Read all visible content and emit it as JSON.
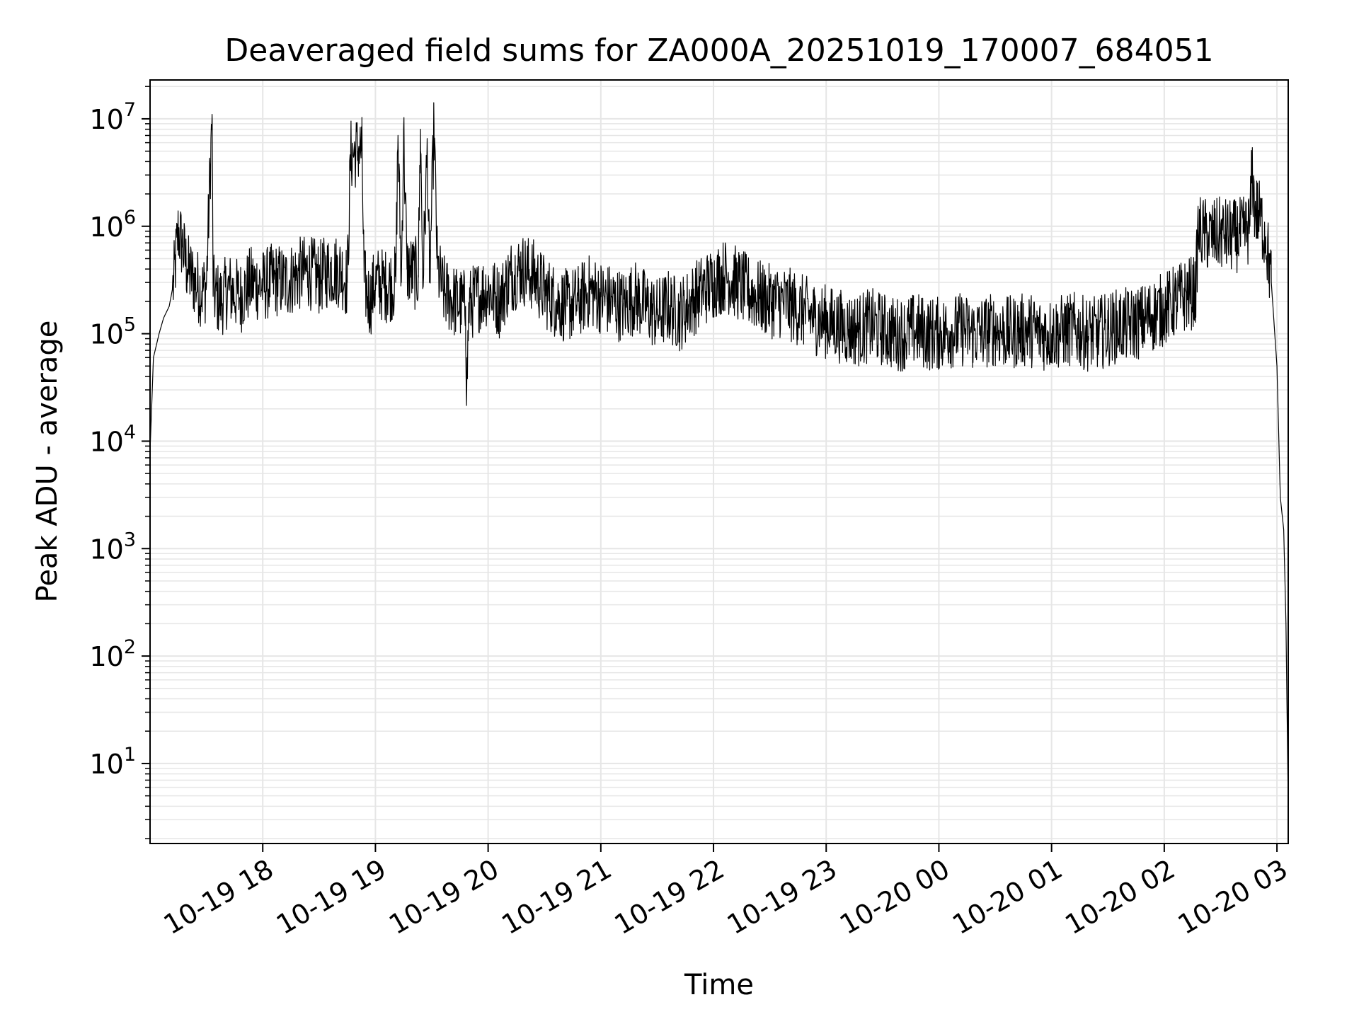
{
  "chart_data": {
    "type": "line",
    "title": "Deaveraged field sums for ZA000A_20251019_170007_684051",
    "xlabel": "Time",
    "ylabel": "Peak ADU - average",
    "yscale": "log",
    "ylim": [
      1.8,
      23000000
    ],
    "xlim_hours": [
      17.0,
      27.1
    ],
    "x_tick_labels": [
      "10-19 18",
      "10-19 19",
      "10-19 20",
      "10-19 21",
      "10-19 22",
      "10-19 23",
      "10-20 00",
      "10-20 01",
      "10-20 02",
      "10-20 03"
    ],
    "x_tick_hours": [
      18,
      19,
      20,
      21,
      22,
      23,
      24,
      25,
      26,
      27
    ],
    "y_ticks": [
      {
        "base": "10",
        "exp": "1",
        "value": 10
      },
      {
        "base": "10",
        "exp": "2",
        "value": 100
      },
      {
        "base": "10",
        "exp": "3",
        "value": 1000
      },
      {
        "base": "10",
        "exp": "4",
        "value": 10000
      },
      {
        "base": "10",
        "exp": "5",
        "value": 100000
      },
      {
        "base": "10",
        "exp": "6",
        "value": 1000000
      },
      {
        "base": "10",
        "exp": "7",
        "value": 10000000
      }
    ],
    "grid": true,
    "line_color": "#000000",
    "grid_color": "#e6e6e6",
    "series": [
      {
        "name": "Peak ADU - average",
        "points": [
          [
            17.0,
            8000
          ],
          [
            17.03,
            60000
          ],
          [
            17.08,
            100000
          ],
          [
            17.12,
            140000
          ],
          [
            17.17,
            180000
          ],
          [
            17.21,
            300000
          ],
          [
            17.25,
            900000
          ],
          [
            17.28,
            700000
          ],
          [
            17.33,
            400000
          ],
          [
            17.4,
            300000
          ],
          [
            17.46,
            250000
          ],
          [
            17.5,
            280000
          ],
          [
            17.55,
            11000000
          ],
          [
            17.56,
            250000
          ],
          [
            17.62,
            200000
          ],
          [
            17.7,
            260000
          ],
          [
            17.8,
            220000
          ],
          [
            17.9,
            300000
          ],
          [
            18.0,
            280000
          ],
          [
            18.1,
            320000
          ],
          [
            18.2,
            300000
          ],
          [
            18.3,
            350000
          ],
          [
            18.4,
            380000
          ],
          [
            18.5,
            330000
          ],
          [
            18.6,
            400000
          ],
          [
            18.7,
            380000
          ],
          [
            18.75,
            300000
          ],
          [
            18.78,
            4500000
          ],
          [
            18.85,
            5200000
          ],
          [
            18.88,
            5000000
          ],
          [
            18.9,
            300000
          ],
          [
            18.95,
            200000
          ],
          [
            19.0,
            300000
          ],
          [
            19.1,
            280000
          ],
          [
            19.18,
            300000
          ],
          [
            19.2,
            7000000
          ],
          [
            19.23,
            300000
          ],
          [
            19.25,
            8000000
          ],
          [
            19.28,
            400000
          ],
          [
            19.38,
            350000
          ],
          [
            19.4,
            8000000
          ],
          [
            19.42,
            300000
          ],
          [
            19.46,
            5000000
          ],
          [
            19.48,
            300000
          ],
          [
            19.52,
            8500000
          ],
          [
            19.55,
            400000
          ],
          [
            19.6,
            250000
          ],
          [
            19.7,
            200000
          ],
          [
            19.8,
            180000
          ],
          [
            19.81,
            30000
          ],
          [
            19.83,
            180000
          ],
          [
            19.9,
            220000
          ],
          [
            20.0,
            260000
          ],
          [
            20.1,
            200000
          ],
          [
            20.2,
            350000
          ],
          [
            20.3,
            400000
          ],
          [
            20.4,
            350000
          ],
          [
            20.5,
            250000
          ],
          [
            20.6,
            200000
          ],
          [
            20.7,
            180000
          ],
          [
            20.8,
            200000
          ],
          [
            20.9,
            250000
          ],
          [
            21.0,
            220000
          ],
          [
            21.1,
            200000
          ],
          [
            21.2,
            180000
          ],
          [
            21.3,
            220000
          ],
          [
            21.4,
            180000
          ],
          [
            21.5,
            150000
          ],
          [
            21.6,
            180000
          ],
          [
            21.7,
            150000
          ],
          [
            21.8,
            200000
          ],
          [
            21.9,
            250000
          ],
          [
            22.0,
            300000
          ],
          [
            22.1,
            350000
          ],
          [
            22.2,
            300000
          ],
          [
            22.3,
            250000
          ],
          [
            22.4,
            220000
          ],
          [
            22.5,
            200000
          ],
          [
            22.6,
            200000
          ],
          [
            22.7,
            180000
          ],
          [
            22.8,
            160000
          ],
          [
            22.9,
            140000
          ],
          [
            23.0,
            130000
          ],
          [
            23.1,
            120000
          ],
          [
            23.2,
            110000
          ],
          [
            23.3,
            110000
          ],
          [
            23.4,
            120000
          ],
          [
            23.5,
            110000
          ],
          [
            23.6,
            100000
          ],
          [
            23.7,
            100000
          ],
          [
            23.8,
            110000
          ],
          [
            23.9,
            100000
          ],
          [
            24.0,
            100000
          ],
          [
            24.1,
            105000
          ],
          [
            24.2,
            110000
          ],
          [
            24.3,
            100000
          ],
          [
            24.4,
            105000
          ],
          [
            24.5,
            110000
          ],
          [
            24.6,
            100000
          ],
          [
            24.7,
            105000
          ],
          [
            24.8,
            110000
          ],
          [
            24.9,
            100000
          ],
          [
            25.0,
            100000
          ],
          [
            25.1,
            105000
          ],
          [
            25.2,
            110000
          ],
          [
            25.3,
            100000
          ],
          [
            25.4,
            100000
          ],
          [
            25.5,
            110000
          ],
          [
            25.6,
            120000
          ],
          [
            25.7,
            120000
          ],
          [
            25.8,
            130000
          ],
          [
            25.9,
            150000
          ],
          [
            26.0,
            170000
          ],
          [
            26.1,
            200000
          ],
          [
            26.2,
            230000
          ],
          [
            26.28,
            250000
          ],
          [
            26.3,
            900000
          ],
          [
            26.4,
            800000
          ],
          [
            26.5,
            850000
          ],
          [
            26.6,
            800000
          ],
          [
            26.7,
            850000
          ],
          [
            26.76,
            1000000
          ],
          [
            26.78,
            3500000
          ],
          [
            26.8,
            1500000
          ],
          [
            26.85,
            1200000
          ],
          [
            26.9,
            800000
          ],
          [
            26.95,
            300000
          ],
          [
            27.0,
            50000
          ],
          [
            27.03,
            3000
          ],
          [
            27.06,
            1500
          ],
          [
            27.08,
            200
          ],
          [
            27.1,
            4
          ]
        ]
      }
    ]
  }
}
